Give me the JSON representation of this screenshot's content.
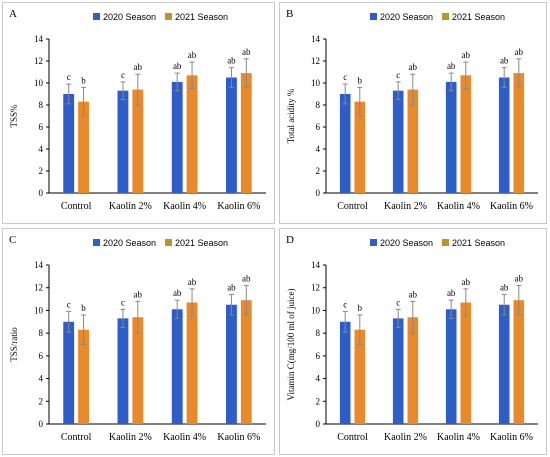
{
  "colors": {
    "season_2020": "#2E5DC8",
    "season_2021": "#E8892B",
    "legend_2021": "#B8962E",
    "axis": "#000000",
    "error": "#888888"
  },
  "legend": {
    "season_2020": "2020 Season",
    "season_2021": "2021 Season"
  },
  "chart_data": [
    {
      "type": "bar",
      "panel_letter": "A",
      "ylabel": "TSS%",
      "ylim": [
        0,
        14
      ],
      "yticks": [
        0,
        2,
        4,
        6,
        8,
        10,
        12,
        14
      ],
      "categories": [
        "Control",
        "Kaolin  2%",
        "Kaolin 4%",
        "Kaolin 6%"
      ],
      "series": [
        {
          "name": "2020 Season",
          "values": [
            9.0,
            9.3,
            10.1,
            10.5
          ],
          "errors": [
            0.9,
            0.8,
            0.8,
            0.9
          ],
          "letters": [
            "c",
            "c",
            "ab",
            "ab"
          ]
        },
        {
          "name": "2021 Season",
          "values": [
            8.3,
            9.4,
            10.7,
            10.9
          ],
          "errors": [
            1.3,
            1.4,
            1.2,
            1.3
          ],
          "letters": [
            "b",
            "ab",
            "ab",
            "ab"
          ]
        }
      ]
    },
    {
      "type": "bar",
      "panel_letter": "B",
      "ylabel": "Total acidity %",
      "ylim": [
        0,
        14
      ],
      "yticks": [
        0,
        2,
        4,
        6,
        8,
        10,
        12,
        14
      ],
      "categories": [
        "Control",
        "Kaolin  2%",
        "Kaolin 4%",
        "Kaolin 6%"
      ],
      "series": [
        {
          "name": "2020 Season",
          "values": [
            9.0,
            9.3,
            10.1,
            10.5
          ],
          "errors": [
            0.9,
            0.8,
            0.8,
            0.9
          ],
          "letters": [
            "c",
            "c",
            "ab",
            "ab"
          ]
        },
        {
          "name": "2021 Season",
          "values": [
            8.3,
            9.4,
            10.7,
            10.9
          ],
          "errors": [
            1.3,
            1.4,
            1.2,
            1.3
          ],
          "letters": [
            "b",
            "ab",
            "ab",
            "ab"
          ]
        }
      ]
    },
    {
      "type": "bar",
      "panel_letter": "C",
      "ylabel": "TSS/ratio",
      "ylim": [
        0,
        14
      ],
      "yticks": [
        0,
        2,
        4,
        6,
        8,
        10,
        12,
        14
      ],
      "categories": [
        "Control",
        "Kaolin  2%",
        "Kaolin 4%",
        "Kaolin 6%"
      ],
      "series": [
        {
          "name": "2020 Season",
          "values": [
            9.0,
            9.3,
            10.1,
            10.5
          ],
          "errors": [
            0.9,
            0.8,
            0.8,
            0.9
          ],
          "letters": [
            "c",
            "c",
            "ab",
            "ab"
          ]
        },
        {
          "name": "2021 Season",
          "values": [
            8.3,
            9.4,
            10.7,
            10.9
          ],
          "errors": [
            1.3,
            1.4,
            1.2,
            1.3
          ],
          "letters": [
            "b",
            "ab",
            "ab",
            "ab"
          ]
        }
      ]
    },
    {
      "type": "bar",
      "panel_letter": "D",
      "ylabel": "Vitamin C(mg/100 ml of juice)",
      "ylim": [
        0,
        14
      ],
      "yticks": [
        0,
        2,
        4,
        6,
        8,
        10,
        12,
        14
      ],
      "categories": [
        "Control",
        "Kaolin  2%",
        "Kaolin 4%",
        "Kaolin 6%"
      ],
      "series": [
        {
          "name": "2020 Season",
          "values": [
            9.0,
            9.3,
            10.1,
            10.5
          ],
          "errors": [
            0.9,
            0.8,
            0.8,
            0.9
          ],
          "letters": [
            "c",
            "c",
            "ab",
            "ab"
          ]
        },
        {
          "name": "2021 Season",
          "values": [
            8.3,
            9.4,
            10.7,
            10.9
          ],
          "errors": [
            1.3,
            1.4,
            1.2,
            1.3
          ],
          "letters": [
            "b",
            "ab",
            "ab",
            "ab"
          ]
        }
      ]
    }
  ]
}
